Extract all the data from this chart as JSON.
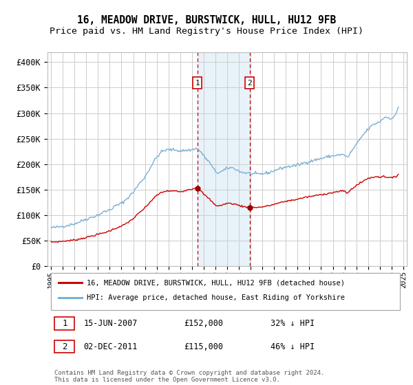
{
  "title": "16, MEADOW DRIVE, BURSTWICK, HULL, HU12 9FB",
  "subtitle": "Price paid vs. HM Land Registry's House Price Index (HPI)",
  "title_fontsize": 10.5,
  "subtitle_fontsize": 9.5,
  "ylim": [
    0,
    420000
  ],
  "yticks": [
    0,
    50000,
    100000,
    150000,
    200000,
    250000,
    300000,
    350000,
    400000
  ],
  "ytick_labels": [
    "£0",
    "£50K",
    "£100K",
    "£150K",
    "£200K",
    "£250K",
    "£300K",
    "£350K",
    "£400K"
  ],
  "background_color": "#ffffff",
  "grid_color": "#cccccc",
  "sale1_date": 2007.46,
  "sale1_price": 152000,
  "sale2_date": 2011.92,
  "sale2_price": 115000,
  "shade_color": "#daeaf5",
  "shade_alpha": 0.6,
  "red_line_color": "#cc0000",
  "blue_line_color": "#7ab0d4",
  "marker_color": "#990000",
  "legend_line1": "16, MEADOW DRIVE, BURSTWICK, HULL, HU12 9FB (detached house)",
  "legend_line2": "HPI: Average price, detached house, East Riding of Yorkshire",
  "sale1_date_str": "15-JUN-2007",
  "sale1_price_str": "£152,000",
  "sale1_pct_str": "32% ↓ HPI",
  "sale2_date_str": "02-DEC-2011",
  "sale2_price_str": "£115,000",
  "sale2_pct_str": "46% ↓ HPI",
  "footnote": "Contains HM Land Registry data © Crown copyright and database right 2024.\nThis data is licensed under the Open Government Licence v3.0.",
  "xlim_left": 1994.7,
  "xlim_right": 2025.3
}
